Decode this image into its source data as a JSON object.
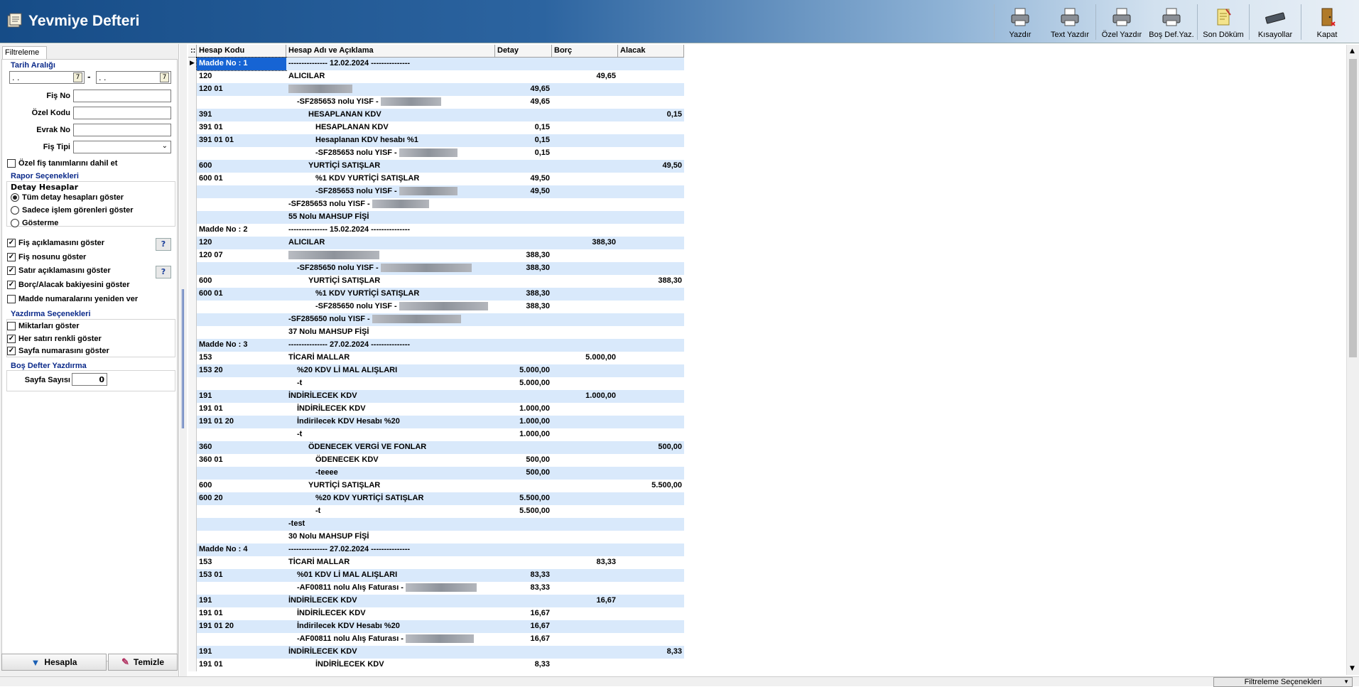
{
  "app": {
    "title": "Yevmiye Defteri"
  },
  "toolbar": [
    {
      "label": "Yazdır",
      "icon": "printer-icon"
    },
    {
      "label": "Text Yazdır",
      "icon": "printer-icon"
    },
    {
      "label": "Özel Yazdır",
      "icon": "printer-icon"
    },
    {
      "label": "Boş Def.Yaz.",
      "icon": "printer-icon"
    },
    {
      "label": "Son Döküm",
      "icon": "document-icon"
    },
    {
      "label": "Kısayollar",
      "icon": "keyboard-icon"
    },
    {
      "label": "Kapat",
      "icon": "exit-door-icon"
    }
  ],
  "filter": {
    "tab": "Filtreleme",
    "date_range_title": "Tarih Aralığı",
    "date_from": ". .",
    "date_to": ". .",
    "date_sep": "-",
    "fis_no_label": "Fiş No",
    "ozel_kodu_label": "Özel Kodu",
    "evrak_no_label": "Evrak No",
    "fis_tipi_label": "Fiş Tipi",
    "ozel_fis": "Özel fiş tanımlarını dahil et",
    "rapor_title": "Rapor Seçenekleri",
    "detay_title": "Detay Hesaplar",
    "radio1": "Tüm detay hesapları göster",
    "radio2": "Sadece işlem görenleri göster",
    "radio3": "Gösterme",
    "cb1": "Fiş açıklamasını göster",
    "cb2": "Fiş nosunu göster",
    "cb3": "Satır açıklamasını göster",
    "cb4": "Borç/Alacak bakiyesini göster",
    "cb5": "Madde numaralarını yeniden ver",
    "help": "?",
    "yazdirma_title": "Yazdırma Seçenekleri",
    "cb6": "Miktarları göster",
    "cb7": "Her satırı renkli göster",
    "cb8": "Sayfa numarasını göster",
    "bos_title": "Boş Defter Yazdırma",
    "sayfa_label": "Sayfa Sayısı",
    "sayfa_value": "0",
    "hesapla": "Hesapla",
    "temizle": "Temizle"
  },
  "grid": {
    "columns": [
      "Hesap Kodu",
      "Hesap Adı ve Açıklama",
      "Detay",
      "Borç",
      "Alacak"
    ],
    "rows": [
      [
        "Madde No : 1",
        "--------------- 12.02.2024 ---------------",
        "",
        "",
        ""
      ],
      [
        "120",
        "ALICILAR",
        "",
        "49,65",
        ""
      ],
      [
        "120 01",
        "",
        "49,65",
        "",
        ""
      ],
      [
        "",
        "-SF285653 nolu YISF - ",
        "49,65",
        "",
        ""
      ],
      [
        "391",
        "HESAPLANAN KDV",
        "",
        "",
        "0,15"
      ],
      [
        "391 01",
        "HESAPLANAN KDV",
        "0,15",
        "",
        ""
      ],
      [
        "391 01 01",
        "Hesaplanan KDV hesabı %1",
        "0,15",
        "",
        ""
      ],
      [
        "",
        "-SF285653 nolu YISF - ",
        "0,15",
        "",
        ""
      ],
      [
        "600",
        "YURTİÇİ SATIŞLAR",
        "",
        "",
        "49,50"
      ],
      [
        "600 01",
        "%1 KDV YURTİÇİ SATIŞLAR",
        "49,50",
        "",
        ""
      ],
      [
        "",
        "-SF285653 nolu YISF - ",
        "49,50",
        "",
        ""
      ],
      [
        "",
        "-SF285653 nolu YISF - ",
        "",
        "",
        ""
      ],
      [
        "",
        "55 Nolu MAHSUP FİŞİ",
        "",
        "",
        ""
      ],
      [
        "Madde No : 2",
        "--------------- 15.02.2024 ---------------",
        "",
        "",
        ""
      ],
      [
        "120",
        "ALICILAR",
        "",
        "388,30",
        ""
      ],
      [
        "120 07",
        "",
        "388,30",
        "",
        ""
      ],
      [
        "",
        "-SF285650 nolu YISF - ",
        "388,30",
        "",
        ""
      ],
      [
        "600",
        "YURTİÇİ SATIŞLAR",
        "",
        "",
        "388,30"
      ],
      [
        "600 01",
        "%1 KDV YURTİÇİ SATIŞLAR",
        "388,30",
        "",
        ""
      ],
      [
        "",
        "-SF285650 nolu YISF - ",
        "388,30",
        "",
        ""
      ],
      [
        "",
        "-SF285650 nolu YISF - ",
        "",
        "",
        ""
      ],
      [
        "",
        "37 Nolu MAHSUP FİŞİ",
        "",
        "",
        ""
      ],
      [
        "Madde No : 3",
        "--------------- 27.02.2024 ---------------",
        "",
        "",
        ""
      ],
      [
        "153",
        "TİCARİ MALLAR",
        "",
        "5.000,00",
        ""
      ],
      [
        "153 20",
        "%20 KDV Lİ MAL ALIŞLARI",
        "5.000,00",
        "",
        ""
      ],
      [
        "",
        "-t",
        "5.000,00",
        "",
        ""
      ],
      [
        "191",
        "İNDİRİLECEK KDV",
        "",
        "1.000,00",
        ""
      ],
      [
        "191 01",
        "İNDİRİLECEK KDV",
        "1.000,00",
        "",
        ""
      ],
      [
        "191 01 20",
        "İndirilecek KDV Hesabı %20",
        "1.000,00",
        "",
        ""
      ],
      [
        "",
        "-t",
        "1.000,00",
        "",
        ""
      ],
      [
        "360",
        "ÖDENECEK VERGİ VE FONLAR",
        "",
        "",
        "500,00"
      ],
      [
        "360 01",
        "ÖDENECEK KDV",
        "500,00",
        "",
        ""
      ],
      [
        "",
        "-teeee",
        "500,00",
        "",
        ""
      ],
      [
        "600",
        "YURTİÇİ SATIŞLAR",
        "",
        "",
        "5.500,00"
      ],
      [
        "600 20",
        "%20 KDV YURTİÇİ SATIŞLAR",
        "5.500,00",
        "",
        ""
      ],
      [
        "",
        "-t",
        "5.500,00",
        "",
        ""
      ],
      [
        "",
        "-test",
        "",
        "",
        ""
      ],
      [
        "",
        "30 Nolu MAHSUP FİŞİ",
        "",
        "",
        ""
      ],
      [
        "Madde No : 4",
        "--------------- 27.02.2024 ---------------",
        "",
        "",
        ""
      ],
      [
        "153",
        "TİCARİ MALLAR",
        "",
        "83,33",
        ""
      ],
      [
        "153 01",
        "%01 KDV Lİ MAL ALIŞLARI",
        "83,33",
        "",
        ""
      ],
      [
        "",
        "-AF00811 nolu Alış Faturası - ",
        "83,33",
        "",
        ""
      ],
      [
        "191",
        "İNDİRİLECEK KDV",
        "",
        "16,67",
        ""
      ],
      [
        "191 01",
        "İNDİRİLECEK KDV",
        "16,67",
        "",
        ""
      ],
      [
        "191 01 20",
        "İndirilecek KDV Hesabı %20",
        "16,67",
        "",
        ""
      ],
      [
        "",
        "-AF00811 nolu Alış Faturası - ",
        "16,67",
        "",
        ""
      ],
      [
        "191",
        "İNDİRİLECEK KDV",
        "",
        "",
        "8,33"
      ],
      [
        "191 01",
        "İNDİRİLECEK KDV",
        "8,33",
        "",
        ""
      ]
    ]
  },
  "status": {
    "filter_select": "Filtreleme Seçenekleri"
  }
}
